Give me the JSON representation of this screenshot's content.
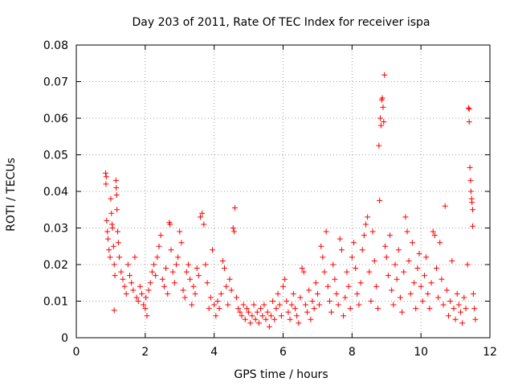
{
  "chart_data": {
    "type": "scatter",
    "title": "Day 203 of 2011, Rate Of TEC Index for receiver ispa",
    "xlabel": "GPS time / hours",
    "ylabel": "ROTI / TECUs",
    "xlim": [
      0,
      12
    ],
    "ylim": [
      0,
      0.08
    ],
    "xticks": [
      0,
      2,
      4,
      6,
      8,
      10,
      12
    ],
    "xtick_labels": [
      "0",
      "2",
      "4",
      "6",
      "8",
      "10",
      "12"
    ],
    "yticks": [
      0,
      0.01,
      0.02,
      0.03,
      0.04,
      0.05,
      0.06,
      0.07,
      0.08
    ],
    "ytick_labels": [
      "0",
      "0.01",
      "0.02",
      "0.03",
      "0.04",
      "0.05",
      "0.06",
      "0.07",
      "0.08"
    ],
    "grid": true,
    "marker": "+",
    "color": "#ff0000",
    "series": [
      {
        "name": "ROTI",
        "points": [
          [
            0.85,
            0.045
          ],
          [
            0.87,
            0.044
          ],
          [
            0.86,
            0.042
          ],
          [
            0.88,
            0.032
          ],
          [
            0.9,
            0.029
          ],
          [
            0.92,
            0.027
          ],
          [
            0.95,
            0.024
          ],
          [
            0.98,
            0.022
          ],
          [
            1.0,
            0.038
          ],
          [
            1.02,
            0.034
          ],
          [
            1.04,
            0.031
          ],
          [
            1.05,
            0.03
          ],
          [
            1.08,
            0.025
          ],
          [
            1.1,
            0.02
          ],
          [
            1.12,
            0.017
          ],
          [
            1.1,
            0.0075
          ],
          [
            1.15,
            0.043
          ],
          [
            1.16,
            0.041
          ],
          [
            1.17,
            0.039
          ],
          [
            1.18,
            0.035
          ],
          [
            1.2,
            0.029
          ],
          [
            1.22,
            0.026
          ],
          [
            1.25,
            0.022
          ],
          [
            1.3,
            0.018
          ],
          [
            1.35,
            0.016
          ],
          [
            1.4,
            0.014
          ],
          [
            1.45,
            0.012
          ],
          [
            1.5,
            0.02
          ],
          [
            1.55,
            0.017
          ],
          [
            1.6,
            0.015
          ],
          [
            1.65,
            0.013
          ],
          [
            1.7,
            0.022
          ],
          [
            1.75,
            0.011
          ],
          [
            1.8,
            0.01
          ],
          [
            1.85,
            0.014
          ],
          [
            1.9,
            0.012
          ],
          [
            1.95,
            0.009
          ],
          [
            2.0,
            0.008
          ],
          [
            2.02,
            0.011
          ],
          [
            2.05,
            0.006
          ],
          [
            2.1,
            0.013
          ],
          [
            2.15,
            0.015
          ],
          [
            2.2,
            0.018
          ],
          [
            2.25,
            0.02
          ],
          [
            2.3,
            0.017
          ],
          [
            2.35,
            0.022
          ],
          [
            2.4,
            0.025
          ],
          [
            2.45,
            0.028
          ],
          [
            2.5,
            0.016
          ],
          [
            2.55,
            0.014
          ],
          [
            2.6,
            0.019
          ],
          [
            2.65,
            0.012
          ],
          [
            2.7,
            0.0315
          ],
          [
            2.72,
            0.031
          ],
          [
            2.75,
            0.024
          ],
          [
            2.8,
            0.018
          ],
          [
            2.85,
            0.015
          ],
          [
            2.9,
            0.02
          ],
          [
            2.95,
            0.022
          ],
          [
            3.0,
            0.029
          ],
          [
            3.05,
            0.026
          ],
          [
            3.1,
            0.013
          ],
          [
            3.15,
            0.011
          ],
          [
            3.2,
            0.018
          ],
          [
            3.25,
            0.02
          ],
          [
            3.3,
            0.016
          ],
          [
            3.35,
            0.009
          ],
          [
            3.4,
            0.014
          ],
          [
            3.45,
            0.012
          ],
          [
            3.5,
            0.019
          ],
          [
            3.55,
            0.017
          ],
          [
            3.6,
            0.033
          ],
          [
            3.65,
            0.034
          ],
          [
            3.7,
            0.031
          ],
          [
            3.75,
            0.02
          ],
          [
            3.8,
            0.015
          ],
          [
            3.85,
            0.008
          ],
          [
            3.9,
            0.011
          ],
          [
            3.95,
            0.024
          ],
          [
            4.0,
            0.009
          ],
          [
            4.05,
            0.006
          ],
          [
            4.1,
            0.01
          ],
          [
            4.15,
            0.008
          ],
          [
            4.2,
            0.012
          ],
          [
            4.25,
            0.021
          ],
          [
            4.3,
            0.019
          ],
          [
            4.35,
            0.014
          ],
          [
            4.4,
            0.009
          ],
          [
            4.45,
            0.016
          ],
          [
            4.5,
            0.013
          ],
          [
            4.55,
            0.03
          ],
          [
            4.58,
            0.029
          ],
          [
            4.6,
            0.0355
          ],
          [
            4.65,
            0.011
          ],
          [
            4.7,
            0.008
          ],
          [
            4.75,
            0.007
          ],
          [
            4.8,
            0.006
          ],
          [
            4.85,
            0.009
          ],
          [
            4.9,
            0.005
          ],
          [
            4.95,
            0.008
          ],
          [
            5.0,
            0.007
          ],
          [
            5.05,
            0.004
          ],
          [
            5.1,
            0.006
          ],
          [
            5.15,
            0.009
          ],
          [
            5.2,
            0.005
          ],
          [
            5.25,
            0.007
          ],
          [
            5.3,
            0.004
          ],
          [
            5.35,
            0.008
          ],
          [
            5.4,
            0.006
          ],
          [
            5.45,
            0.009
          ],
          [
            5.5,
            0.005
          ],
          [
            5.55,
            0.007
          ],
          [
            5.6,
            0.003
          ],
          [
            5.65,
            0.006
          ],
          [
            5.7,
            0.01
          ],
          [
            5.75,
            0.005
          ],
          [
            5.8,
            0.008
          ],
          [
            5.85,
            0.012
          ],
          [
            5.9,
            0.009
          ],
          [
            5.95,
            0.006
          ],
          [
            6.0,
            0.014
          ],
          [
            6.05,
            0.016
          ],
          [
            6.1,
            0.01
          ],
          [
            6.15,
            0.007
          ],
          [
            6.2,
            0.005
          ],
          [
            6.25,
            0.009
          ],
          [
            6.3,
            0.012
          ],
          [
            6.35,
            0.008
          ],
          [
            6.4,
            0.006
          ],
          [
            6.45,
            0.004
          ],
          [
            6.5,
            0.011
          ],
          [
            6.55,
            0.019
          ],
          [
            6.6,
            0.018
          ],
          [
            6.65,
            0.009
          ],
          [
            6.7,
            0.007
          ],
          [
            6.75,
            0.013
          ],
          [
            6.8,
            0.005
          ],
          [
            6.85,
            0.01
          ],
          [
            6.9,
            0.008
          ],
          [
            6.95,
            0.015
          ],
          [
            7.0,
            0.012
          ],
          [
            7.05,
            0.009
          ],
          [
            7.1,
            0.025
          ],
          [
            7.15,
            0.022
          ],
          [
            7.2,
            0.018
          ],
          [
            7.25,
            0.029
          ],
          [
            7.3,
            0.014
          ],
          [
            7.35,
            0.01
          ],
          [
            7.4,
            0.007
          ],
          [
            7.45,
            0.02
          ],
          [
            7.5,
            0.016
          ],
          [
            7.55,
            0.012
          ],
          [
            7.6,
            0.009
          ],
          [
            7.65,
            0.027
          ],
          [
            7.7,
            0.024
          ],
          [
            7.75,
            0.006
          ],
          [
            7.8,
            0.011
          ],
          [
            7.85,
            0.018
          ],
          [
            7.9,
            0.014
          ],
          [
            7.95,
            0.008
          ],
          [
            8.0,
            0.022
          ],
          [
            8.05,
            0.026
          ],
          [
            8.1,
            0.019
          ],
          [
            8.15,
            0.012
          ],
          [
            8.2,
            0.009
          ],
          [
            8.25,
            0.015
          ],
          [
            8.3,
            0.024
          ],
          [
            8.35,
            0.028
          ],
          [
            8.4,
            0.031
          ],
          [
            8.45,
            0.033
          ],
          [
            8.5,
            0.018
          ],
          [
            8.55,
            0.01
          ],
          [
            8.6,
            0.029
          ],
          [
            8.65,
            0.021
          ],
          [
            8.7,
            0.014
          ],
          [
            8.75,
            0.008
          ],
          [
            8.78,
            0.0525
          ],
          [
            8.8,
            0.0375
          ],
          [
            8.82,
            0.06
          ],
          [
            8.84,
            0.058
          ],
          [
            8.86,
            0.065
          ],
          [
            8.88,
            0.0655
          ],
          [
            8.9,
            0.063
          ],
          [
            8.92,
            0.059
          ],
          [
            8.94,
            0.0718
          ],
          [
            8.96,
            0.025
          ],
          [
            9.0,
            0.022
          ],
          [
            9.05,
            0.017
          ],
          [
            9.1,
            0.028
          ],
          [
            9.15,
            0.013
          ],
          [
            9.2,
            0.009
          ],
          [
            9.25,
            0.02
          ],
          [
            9.3,
            0.016
          ],
          [
            9.35,
            0.024
          ],
          [
            9.4,
            0.011
          ],
          [
            9.45,
            0.007
          ],
          [
            9.5,
            0.018
          ],
          [
            9.55,
            0.033
          ],
          [
            9.6,
            0.029
          ],
          [
            9.65,
            0.021
          ],
          [
            9.7,
            0.012
          ],
          [
            9.75,
            0.026
          ],
          [
            9.8,
            0.015
          ],
          [
            9.85,
            0.008
          ],
          [
            9.9,
            0.019
          ],
          [
            9.95,
            0.023
          ],
          [
            10.0,
            0.014
          ],
          [
            10.05,
            0.01
          ],
          [
            10.1,
            0.017
          ],
          [
            10.15,
            0.022
          ],
          [
            10.2,
            0.012
          ],
          [
            10.25,
            0.008
          ],
          [
            10.3,
            0.015
          ],
          [
            10.35,
            0.029
          ],
          [
            10.4,
            0.028
          ],
          [
            10.45,
            0.019
          ],
          [
            10.5,
            0.011
          ],
          [
            10.55,
            0.026
          ],
          [
            10.6,
            0.016
          ],
          [
            10.65,
            0.009
          ],
          [
            10.7,
            0.036
          ],
          [
            10.75,
            0.013
          ],
          [
            10.8,
            0.006
          ],
          [
            10.85,
            0.01
          ],
          [
            10.9,
            0.021
          ],
          [
            10.95,
            0.008
          ],
          [
            11.0,
            0.005
          ],
          [
            11.05,
            0.012
          ],
          [
            11.1,
            0.009
          ],
          [
            11.15,
            0.007
          ],
          [
            11.2,
            0.004
          ],
          [
            11.25,
            0.011
          ],
          [
            11.3,
            0.008
          ],
          [
            11.35,
            0.02
          ],
          [
            11.38,
            0.0628
          ],
          [
            11.4,
            0.0625
          ],
          [
            11.4,
            0.059
          ],
          [
            11.42,
            0.0465
          ],
          [
            11.44,
            0.043
          ],
          [
            11.45,
            0.04
          ],
          [
            11.47,
            0.038
          ],
          [
            11.48,
            0.037
          ],
          [
            11.5,
            0.035
          ],
          [
            11.5,
            0.0305
          ],
          [
            11.52,
            0.012
          ],
          [
            11.55,
            0.008
          ],
          [
            11.58,
            0.005
          ]
        ]
      }
    ]
  }
}
